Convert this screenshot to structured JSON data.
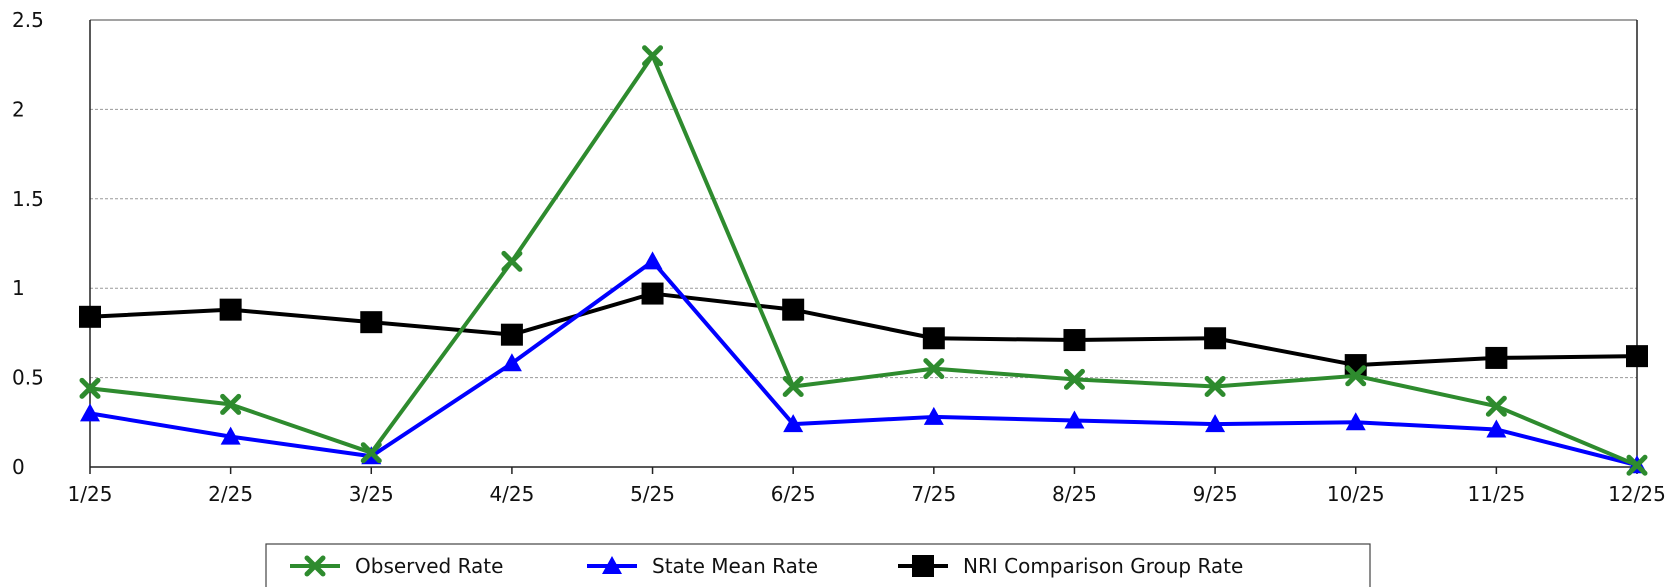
{
  "chart_data": {
    "type": "line",
    "title": "",
    "xlabel": "",
    "ylabel": "",
    "categories": [
      "1/25",
      "2/25",
      "3/25",
      "4/25",
      "5/25",
      "6/25",
      "7/25",
      "8/25",
      "9/25",
      "10/25",
      "11/25",
      "12/25"
    ],
    "ylim": [
      0,
      2.5
    ],
    "yticks": [
      {
        "value": 0,
        "label": "0"
      },
      {
        "value": 0.5,
        "label": "0.5"
      },
      {
        "value": 1,
        "label": "1"
      },
      {
        "value": 1.5,
        "label": "1.5"
      },
      {
        "value": 2,
        "label": "2"
      },
      {
        "value": 2.5,
        "label": "2.5"
      }
    ],
    "grid": "horizontal dashed",
    "legend_position": "bottom",
    "series": [
      {
        "name": "Observed Rate",
        "color": "#2e8b2e",
        "marker": "x",
        "values": [
          0.44,
          0.35,
          0.08,
          1.15,
          2.3,
          0.45,
          0.55,
          0.49,
          0.45,
          0.51,
          0.34,
          0.01
        ]
      },
      {
        "name": "State Mean Rate",
        "color": "#0000ff",
        "marker": "triangle",
        "values": [
          0.3,
          0.17,
          0.06,
          0.58,
          1.15,
          0.24,
          0.28,
          0.26,
          0.24,
          0.25,
          0.21,
          0.01
        ]
      },
      {
        "name": "NRI Comparison Group Rate",
        "color": "#000000",
        "marker": "square",
        "values": [
          0.84,
          0.88,
          0.81,
          0.74,
          0.97,
          0.88,
          0.72,
          0.71,
          0.72,
          0.57,
          0.61,
          0.62
        ]
      }
    ]
  }
}
